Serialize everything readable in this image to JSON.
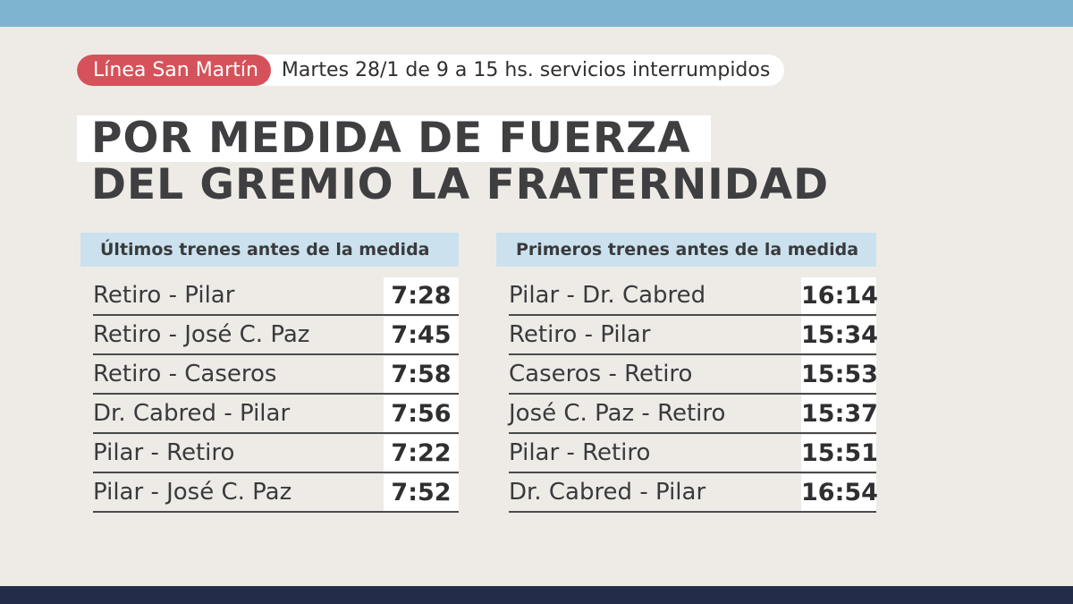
{
  "colors": {
    "top_bar": "#7fb4cf",
    "bottom_bar": "#232c48",
    "line_badge": "#d6525a",
    "table_header": "#cbe2ee",
    "background": "#eeebe7"
  },
  "banner": {
    "line_name": "Línea San Martín",
    "description": "Martes 28/1 de 9 a 15 hs. servicios interrumpidos"
  },
  "headline": {
    "line1": "POR MEDIDA DE FUERZA",
    "line2": "DEL GREMIO LA FRATERNIDAD"
  },
  "last_trains": {
    "header": "Últimos trenes antes de la medida",
    "rows": [
      {
        "route": "Retiro - Pilar",
        "time": "7:28"
      },
      {
        "route": "Retiro - José C. Paz",
        "time": "7:45"
      },
      {
        "route": "Retiro - Caseros",
        "time": "7:58"
      },
      {
        "route": "Dr. Cabred - Pilar",
        "time": "7:56"
      },
      {
        "route": "Pilar - Retiro",
        "time": "7:22"
      },
      {
        "route": "Pilar - José C. Paz",
        "time": "7:52"
      }
    ]
  },
  "first_trains": {
    "header": "Primeros trenes antes de la medida",
    "rows": [
      {
        "route": "Pilar - Dr. Cabred",
        "time": "16:14"
      },
      {
        "route": "Retiro - Pilar",
        "time": "15:34"
      },
      {
        "route": "Caseros - Retiro",
        "time": "15:53"
      },
      {
        "route": "José C. Paz - Retiro",
        "time": "15:37"
      },
      {
        "route": "Pilar - Retiro",
        "time": "15:51"
      },
      {
        "route": "Dr. Cabred - Pilar",
        "time": "16:54"
      }
    ]
  }
}
